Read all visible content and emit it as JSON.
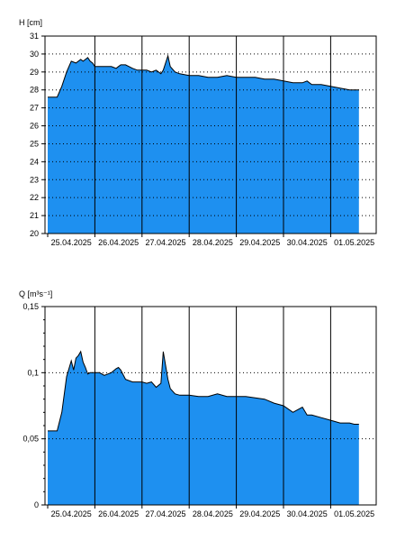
{
  "colors": {
    "fill": "#1E90F0",
    "line": "#000000",
    "grid": "#000000",
    "background": "#FFFFFF"
  },
  "chart_data": [
    {
      "type": "area",
      "ylabel": "H [cm]",
      "x_tick_labels": [
        "25.04.2025",
        "26.04.2025",
        "27.04.2025",
        "28.04.2025",
        "29.04.2025",
        "30.04.2025",
        "01.05.2025"
      ],
      "y_tick_labels": [
        "20",
        "21",
        "22",
        "23",
        "24",
        "25",
        "26",
        "27",
        "28",
        "29",
        "30",
        "31"
      ],
      "ylim": [
        20,
        31
      ],
      "grid": "vertical solid lines at day boundaries, horizontal dotted lines at each tick",
      "series": [
        {
          "x": [
            0.0,
            0.2,
            0.3,
            0.4,
            0.5,
            0.6,
            0.7,
            0.75,
            0.8,
            0.85,
            0.9,
            0.95,
            1.0,
            1.1,
            1.2,
            1.35,
            1.45,
            1.5,
            1.55,
            1.65,
            1.8,
            1.9,
            2.0,
            2.1,
            2.2,
            2.3,
            2.4,
            2.45,
            2.55,
            2.6,
            2.7,
            2.8,
            3.0,
            3.2,
            3.4,
            3.6,
            3.8,
            4.0,
            4.2,
            4.4,
            4.6,
            4.8,
            5.0,
            5.2,
            5.4,
            5.5,
            5.6,
            5.8,
            6.0,
            6.2,
            6.4,
            6.5,
            6.6
          ],
          "y": [
            27.6,
            27.6,
            28.2,
            29.0,
            29.6,
            29.5,
            29.7,
            29.6,
            29.7,
            29.8,
            29.6,
            29.5,
            29.3,
            29.3,
            29.3,
            29.3,
            29.2,
            29.3,
            29.4,
            29.4,
            29.2,
            29.1,
            29.1,
            29.1,
            29.0,
            29.1,
            28.9,
            29.1,
            29.9,
            29.3,
            29.0,
            28.9,
            28.8,
            28.8,
            28.7,
            28.7,
            28.8,
            28.7,
            28.7,
            28.7,
            28.6,
            28.6,
            28.5,
            28.4,
            28.4,
            28.5,
            28.3,
            28.3,
            28.2,
            28.1,
            28.0,
            28.0,
            28.0
          ]
        }
      ]
    },
    {
      "type": "area",
      "ylabel": "Q [m³s⁻¹]",
      "x_tick_labels": [
        "25.04.2025",
        "26.04.2025",
        "27.04.2025",
        "28.04.2025",
        "29.04.2025",
        "30.04.2025",
        "01.05.2025"
      ],
      "y_tick_labels": [
        "0",
        "0,05",
        "0,1",
        "0,15"
      ],
      "ylim": [
        0,
        0.15
      ],
      "grid": "vertical solid lines at day boundaries, horizontal dotted lines at each labeled tick",
      "series": [
        {
          "x": [
            0.0,
            0.2,
            0.3,
            0.4,
            0.5,
            0.55,
            0.6,
            0.65,
            0.7,
            0.75,
            0.8,
            0.85,
            0.9,
            1.0,
            1.1,
            1.2,
            1.35,
            1.45,
            1.5,
            1.55,
            1.65,
            1.8,
            1.9,
            2.0,
            2.1,
            2.2,
            2.3,
            2.4,
            2.45,
            2.55,
            2.6,
            2.7,
            2.8,
            3.0,
            3.2,
            3.4,
            3.6,
            3.8,
            4.0,
            4.2,
            4.4,
            4.6,
            4.8,
            5.0,
            5.2,
            5.4,
            5.5,
            5.6,
            5.8,
            6.0,
            6.2,
            6.4,
            6.5,
            6.6
          ],
          "y": [
            0.056,
            0.056,
            0.07,
            0.097,
            0.109,
            0.102,
            0.111,
            0.113,
            0.116,
            0.108,
            0.104,
            0.099,
            0.1,
            0.1,
            0.1,
            0.098,
            0.1,
            0.103,
            0.104,
            0.102,
            0.095,
            0.093,
            0.093,
            0.093,
            0.092,
            0.093,
            0.089,
            0.092,
            0.116,
            0.095,
            0.088,
            0.084,
            0.083,
            0.083,
            0.082,
            0.082,
            0.084,
            0.082,
            0.082,
            0.082,
            0.081,
            0.08,
            0.077,
            0.075,
            0.07,
            0.074,
            0.068,
            0.068,
            0.066,
            0.064,
            0.062,
            0.062,
            0.061,
            0.061
          ]
        }
      ]
    }
  ]
}
